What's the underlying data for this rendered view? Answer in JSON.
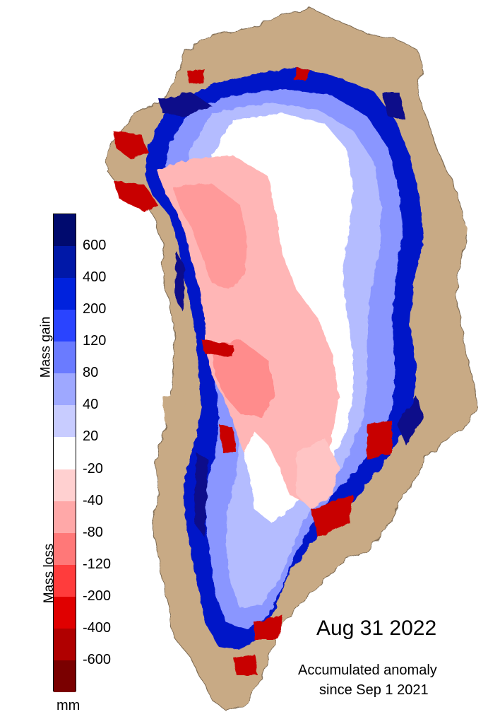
{
  "map": {
    "subject": "Greenland ice sheet",
    "date": "Aug 31 2022",
    "caption_line1": "Accumulated anomaly",
    "caption_line2": "since Sep 1 2021",
    "land_color": "#c8aa85"
  },
  "legend": {
    "gain_title": "Mass gain",
    "loss_title": "Mass loss",
    "unit": "mm",
    "colors": [
      "#000a6e",
      "#0018a8",
      "#0022dd",
      "#2a44ff",
      "#6a7bff",
      "#9ea8ff",
      "#c8ccff",
      "#ffffff",
      "#ffd0d0",
      "#ffa8a8",
      "#ff7878",
      "#ff3c3c",
      "#e00000",
      "#b00000",
      "#7a0000"
    ],
    "ticks": [
      "600",
      "400",
      "200",
      "120",
      "80",
      "40",
      "20",
      "-20",
      "-40",
      "-80",
      "-120",
      "-200",
      "-400",
      "-600"
    ]
  }
}
